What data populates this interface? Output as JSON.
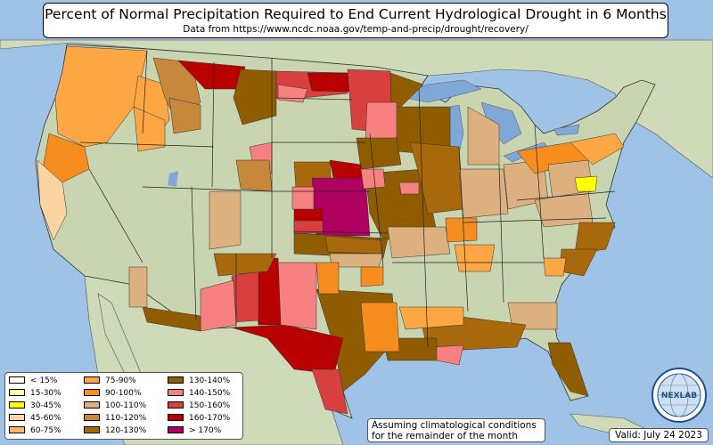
{
  "header": {
    "title": "Percent of Normal Precipitation Required to End Current Hydrological Drought in 6 Months",
    "subtitle": "Data from https://www.ncdc.noaa.gov/temp-and-precip/drought/recovery/"
  },
  "legend": {
    "items": [
      {
        "label": "< 15%",
        "color": "#ffffe8"
      },
      {
        "label": "15-30%",
        "color": "#ffffa8"
      },
      {
        "label": "30-45%",
        "color": "#ffff00"
      },
      {
        "label": "45-60%",
        "color": "#fcd4a4"
      },
      {
        "label": "60-75%",
        "color": "#fdb863"
      },
      {
        "label": "75-90%",
        "color": "#fca644"
      },
      {
        "label": "90-100%",
        "color": "#f78d1e"
      },
      {
        "label": "100-110%",
        "color": "#ddb080"
      },
      {
        "label": "110-120%",
        "color": "#c7883b"
      },
      {
        "label": "120-130%",
        "color": "#a8680c"
      },
      {
        "label": "130-140%",
        "color": "#8f5d00"
      },
      {
        "label": "140-150%",
        "color": "#f78080"
      },
      {
        "label": "150-160%",
        "color": "#d84040"
      },
      {
        "label": "160-170%",
        "color": "#b80000"
      },
      {
        "label": "> 170%",
        "color": "#b00060"
      }
    ]
  },
  "note": {
    "line1": "Assuming climatological conditions",
    "line2": "for the remainder of the month"
  },
  "valid": "Valid: July 24 2023",
  "logo": {
    "text": "NEXLAB",
    "icon": "nexlab-globe-logo"
  },
  "colors": {
    "ocean": "#9ec3e6",
    "lakes": "#7fa8d8",
    "land_us": "#c9d4b0",
    "land_foreign": "#cfdab8",
    "desert": "#d8cfa8"
  }
}
